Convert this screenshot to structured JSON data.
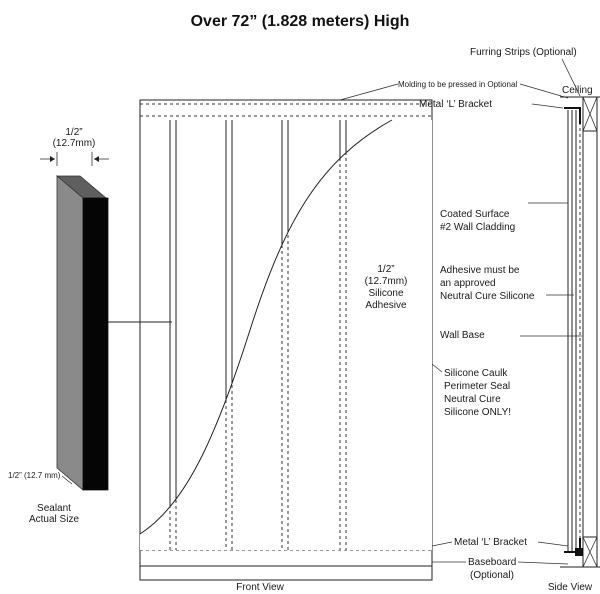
{
  "title": "Over 72” (1.828 meters) High",
  "sealant": {
    "top_dim": [
      "1/2”",
      "(12.7mm)"
    ],
    "bottom_dim": "1/2” (12.7 mm)",
    "caption": [
      "Sealant",
      "Actual Size"
    ]
  },
  "front_view": {
    "adhesive_label": [
      "1/2”",
      "(12.7mm)",
      "Silicone",
      "Adhesive"
    ],
    "caption": "Front View"
  },
  "callouts": {
    "molding": "Molding to be pressed in Optional",
    "bracket_top": "Metal ‘L’ Bracket",
    "coated": [
      "Coated Surface",
      "#2 Wall Cladding"
    ],
    "adhesive_note": [
      "Adhesive must be",
      "an approved",
      "Neutral Cure Silicone"
    ],
    "wall_base": "Wall Base",
    "caulk": [
      "Silicone Caulk",
      "Perimeter Seal",
      "Neutral Cure",
      "Silicone ONLY!"
    ],
    "bracket_bottom": "Metal ‘L’ Bracket",
    "baseboard": [
      "Baseboard",
      "(Optional)"
    ]
  },
  "side_view": {
    "furring": "Furring Strips (Optional)",
    "ceiling": "Ceiling",
    "caption": "Side View"
  }
}
